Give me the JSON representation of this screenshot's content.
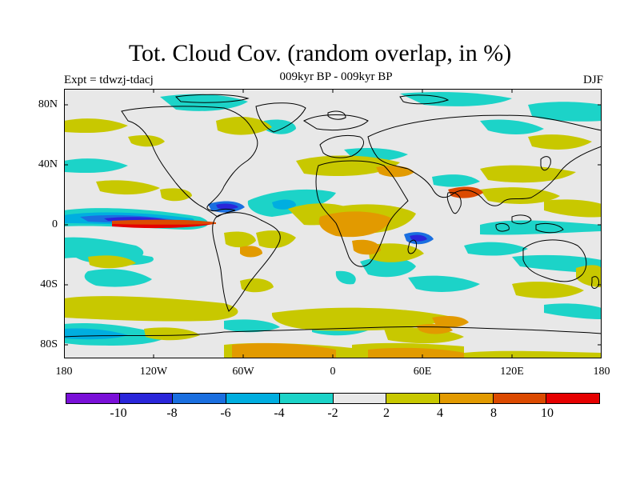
{
  "title": "Tot. Cloud Cov. (random overlap, in %)",
  "subtitle": "009kyr BP - 009kyr BP",
  "experiment": "Expt = tdwzj-tdacj",
  "season": "DJF",
  "axes": {
    "y_labels": [
      "80N",
      "40N",
      "0",
      "40S",
      "80S"
    ],
    "x_labels": [
      "180",
      "120W",
      "60W",
      "0",
      "60E",
      "120E",
      "180"
    ]
  },
  "colorbar": {
    "colors": [
      "#7a10d8",
      "#2a26da",
      "#1a6fe0",
      "#00aee0",
      "#1cd3c8",
      "#e8e8e8",
      "#c8c800",
      "#e29a00",
      "#dc4a00",
      "#e60000"
    ],
    "labels": [
      "-10",
      "-8",
      "-6",
      "-4",
      "-2",
      "2",
      "4",
      "8",
      "10"
    ]
  },
  "colors": {
    "background": "#e8e8e8",
    "coast": "#000000"
  }
}
